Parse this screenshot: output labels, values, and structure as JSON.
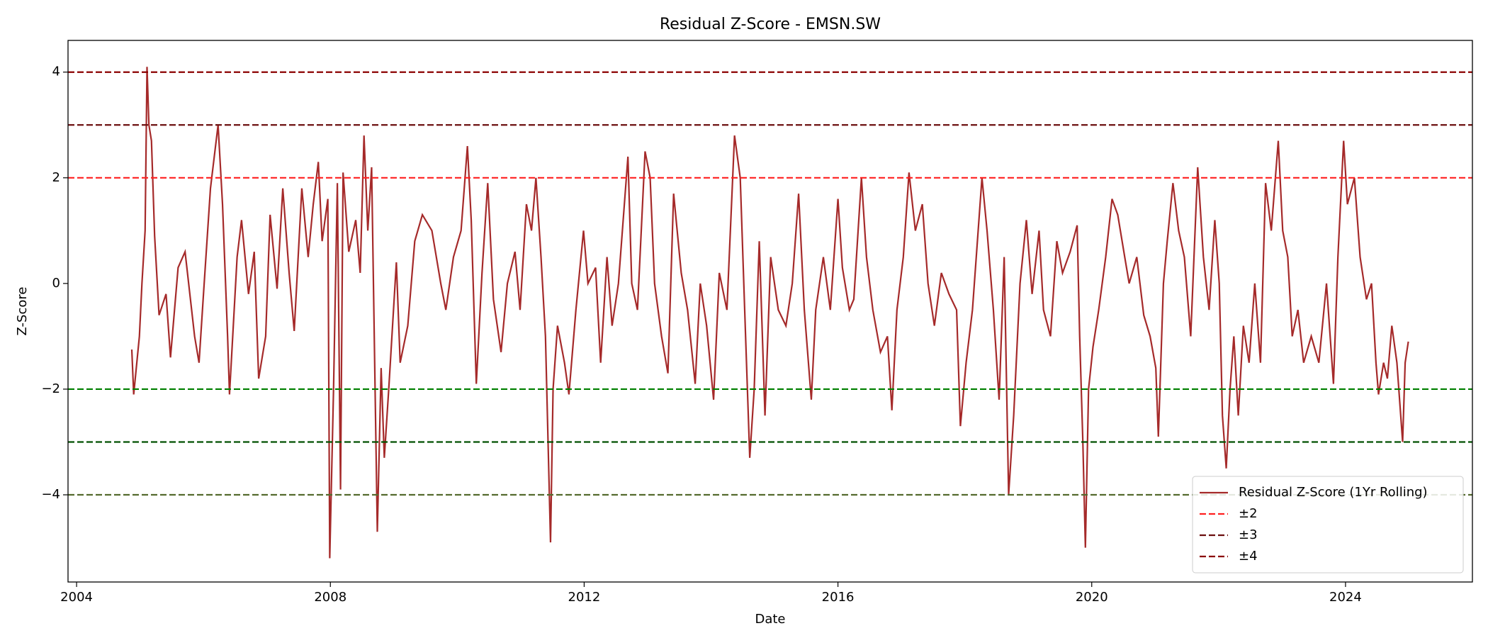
{
  "chart_data": {
    "type": "line",
    "title": "Residual Z-Score - EMSN.SW",
    "xlabel": "Date",
    "ylabel": "Z-Score",
    "x": [
      2004.87,
      2004.9,
      2004.99,
      2005.03,
      2005.08,
      2005.11,
      2005.14,
      2005.18,
      2005.23,
      2005.3,
      2005.41,
      2005.48,
      2005.6,
      2005.71,
      2005.86,
      2005.93,
      2006.0,
      2006.11,
      2006.17,
      2006.23,
      2006.3,
      2006.38,
      2006.41,
      2006.53,
      2006.6,
      2006.71,
      2006.8,
      2006.87,
      2006.98,
      2007.05,
      2007.16,
      2007.25,
      2007.35,
      2007.43,
      2007.55,
      2007.65,
      2007.73,
      2007.81,
      2007.87,
      2007.96,
      2007.99,
      2008.05,
      2008.11,
      2008.16,
      2008.2,
      2008.29,
      2008.4,
      2008.47,
      2008.53,
      2008.59,
      2008.65,
      2008.74,
      2008.8,
      2008.85,
      2008.92,
      2009.04,
      2009.1,
      2009.22,
      2009.33,
      2009.45,
      2009.6,
      2009.74,
      2009.82,
      2009.94,
      2010.06,
      2010.16,
      2010.22,
      2010.3,
      2010.39,
      2010.48,
      2010.57,
      2010.69,
      2010.79,
      2010.91,
      2010.99,
      2011.09,
      2011.17,
      2011.24,
      2011.32,
      2011.39,
      2011.47,
      2011.51,
      2011.58,
      2011.69,
      2011.76,
      2011.87,
      2011.99,
      2012.06,
      2012.18,
      2012.26,
      2012.36,
      2012.44,
      2012.54,
      2012.69,
      2012.75,
      2012.84,
      2012.96,
      2013.04,
      2013.11,
      2013.22,
      2013.32,
      2013.41,
      2013.53,
      2013.63,
      2013.75,
      2013.83,
      2013.93,
      2014.04,
      2014.13,
      2014.25,
      2014.37,
      2014.46,
      2014.53,
      2014.61,
      2014.68,
      2014.76,
      2014.85,
      2014.94,
      2015.06,
      2015.18,
      2015.28,
      2015.38,
      2015.47,
      2015.58,
      2015.65,
      2015.77,
      2015.88,
      2016.0,
      2016.07,
      2016.18,
      2016.25,
      2016.37,
      2016.45,
      2016.55,
      2016.67,
      2016.78,
      2016.85,
      2016.93,
      2017.03,
      2017.12,
      2017.22,
      2017.33,
      2017.42,
      2017.52,
      2017.63,
      2017.75,
      2017.87,
      2017.93,
      2018.02,
      2018.12,
      2018.27,
      2018.35,
      2018.45,
      2018.54,
      2018.62,
      2018.69,
      2018.77,
      2018.87,
      2018.97,
      2019.06,
      2019.17,
      2019.24,
      2019.35,
      2019.45,
      2019.54,
      2019.66,
      2019.77,
      2019.81,
      2019.86,
      2019.9,
      2019.95,
      2020.02,
      2020.11,
      2020.22,
      2020.32,
      2020.41,
      2020.52,
      2020.59,
      2020.71,
      2020.82,
      2020.92,
      2021.01,
      2021.05,
      2021.13,
      2021.19,
      2021.28,
      2021.37,
      2021.46,
      2021.56,
      2021.67,
      2021.76,
      2021.85,
      2021.94,
      2022.01,
      2022.06,
      2022.12,
      2022.18,
      2022.24,
      2022.31,
      2022.39,
      2022.48,
      2022.57,
      2022.66,
      2022.74,
      2022.83,
      2022.94,
      2023.01,
      2023.09,
      2023.16,
      2023.25,
      2023.34,
      2023.46,
      2023.58,
      2023.7,
      2023.81,
      2023.88,
      2023.97,
      2024.03,
      2024.14,
      2024.23,
      2024.33,
      2024.41,
      2024.48,
      2024.52,
      2024.6,
      2024.66,
      2024.73,
      2024.81,
      2024.87,
      2024.9,
      2024.94,
      2024.99
    ],
    "series": [
      {
        "name": "Residual Z-Score (1Yr Rolling)",
        "color": "#a52a2a",
        "values": [
          -1.25,
          -2.1,
          -1.0,
          0,
          1.0,
          4.1,
          3.0,
          2.7,
          0.9,
          -0.6,
          -0.2,
          -1.4,
          0.3,
          0.6,
          -1.0,
          -1.5,
          -0.2,
          1.8,
          2.4,
          3.0,
          1.5,
          -1.0,
          -2.1,
          0.5,
          1.2,
          -0.2,
          0.6,
          -1.8,
          -1.0,
          1.3,
          -0.1,
          1.8,
          0.2,
          -0.9,
          1.8,
          0.5,
          1.5,
          2.3,
          0.8,
          1.6,
          -5.2,
          -2.0,
          1.9,
          -3.9,
          2.1,
          0.6,
          1.2,
          0.2,
          2.8,
          1.0,
          2.2,
          -4.7,
          -1.6,
          -3.3,
          -2.0,
          0.4,
          -1.5,
          -0.8,
          0.8,
          1.3,
          1.0,
          0.0,
          -0.5,
          0.5,
          1.0,
          2.6,
          1.2,
          -1.9,
          0.2,
          1.9,
          -0.3,
          -1.3,
          0.0,
          0.6,
          -0.5,
          1.5,
          1.0,
          2.0,
          0.5,
          -1.0,
          -4.9,
          -2.0,
          -0.8,
          -1.5,
          -2.1,
          -0.5,
          1.0,
          0.0,
          0.3,
          -1.5,
          0.5,
          -0.8,
          0.0,
          2.4,
          0.0,
          -0.5,
          2.5,
          2.0,
          0.0,
          -1.0,
          -1.7,
          1.7,
          0.2,
          -0.5,
          -1.9,
          0.0,
          -0.8,
          -2.2,
          0.2,
          -0.5,
          2.8,
          2.0,
          -0.5,
          -3.3,
          -2.0,
          0.8,
          -2.5,
          0.5,
          -0.5,
          -0.8,
          0.0,
          1.7,
          -0.5,
          -2.2,
          -0.5,
          0.5,
          -0.5,
          1.6,
          0.3,
          -0.5,
          -0.3,
          2.0,
          0.5,
          -0.5,
          -1.3,
          -1.0,
          -2.4,
          -0.5,
          0.5,
          2.1,
          1.0,
          1.5,
          0.0,
          -0.8,
          0.2,
          -0.2,
          -0.5,
          -2.7,
          -1.5,
          -0.5,
          2.0,
          1.0,
          -0.5,
          -2.2,
          0.5,
          -4.0,
          -2.5,
          0.0,
          1.2,
          -0.2,
          1.0,
          -0.5,
          -1.0,
          0.8,
          0.2,
          0.6,
          1.1,
          -1.0,
          -3.0,
          -5.0,
          -2.0,
          -1.2,
          -0.5,
          0.5,
          1.6,
          1.3,
          0.5,
          0.0,
          0.5,
          -0.6,
          -1.0,
          -1.6,
          -2.9,
          0.0,
          0.8,
          1.9,
          1.0,
          0.5,
          -1.0,
          2.2,
          0.5,
          -0.5,
          1.2,
          0.0,
          -2.5,
          -3.5,
          -2.0,
          -1.0,
          -2.5,
          -0.8,
          -1.5,
          0.0,
          -1.5,
          1.9,
          1.0,
          2.7,
          1.0,
          0.5,
          -1.0,
          -0.5,
          -1.5,
          -1.0,
          -1.5,
          0.0,
          -1.9,
          0.5,
          2.7,
          1.5,
          2.0,
          0.5,
          -0.3,
          0.0,
          -1.5,
          -2.1,
          -1.5,
          -1.8,
          -0.8,
          -1.5,
          -2.5,
          -3.0,
          -1.5,
          -1.1
        ]
      }
    ],
    "hlines": [
      {
        "value": 2,
        "color": "#ff2020",
        "name": "±2"
      },
      {
        "value": 3,
        "color": "#6b0f0f",
        "name": "±3"
      },
      {
        "value": 4,
        "color": "#8b0000",
        "name": "±4"
      },
      {
        "value": -2,
        "color": "#008000"
      },
      {
        "value": -3,
        "color": "#005000"
      },
      {
        "value": -4,
        "color": "#556b2f"
      }
    ],
    "xlim": [
      2003.865,
      2026.0
    ],
    "xticks": [
      2004,
      2008,
      2012,
      2016,
      2020,
      2024
    ],
    "ylim": [
      -5.65,
      4.6
    ],
    "yticks": [
      {
        "value": -4,
        "label": "−4"
      },
      {
        "value": -2,
        "label": "−2"
      },
      0,
      2,
      4
    ],
    "legend": "lower right"
  }
}
